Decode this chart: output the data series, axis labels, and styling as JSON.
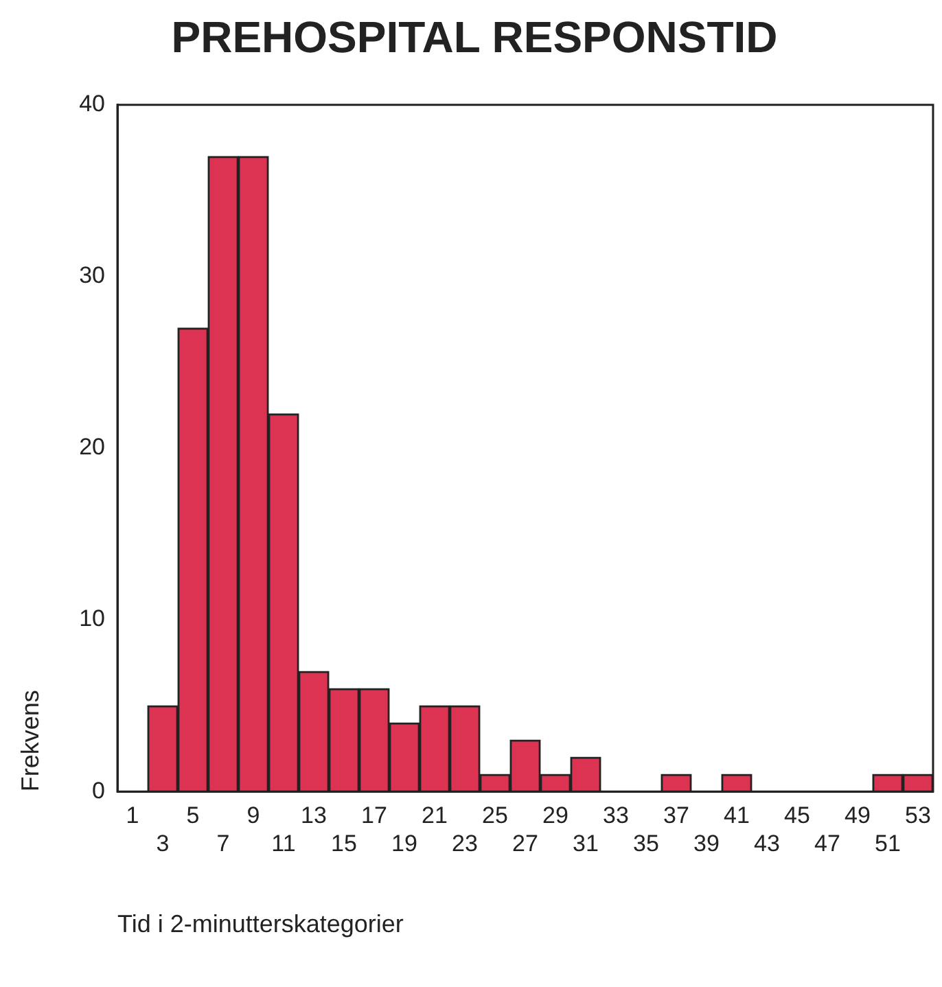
{
  "chart_data": {
    "type": "bar",
    "title": "PREHOSPITAL RESPONSTID",
    "xlabel": "Tid i 2-minutterskategorier",
    "ylabel": "Frekvens",
    "categories": [
      "1",
      "3",
      "5",
      "7",
      "9",
      "11",
      "13",
      "15",
      "17",
      "19",
      "21",
      "23",
      "25",
      "27",
      "29",
      "31",
      "33",
      "35",
      "37",
      "39",
      "41",
      "43",
      "45",
      "47",
      "49",
      "51",
      "53"
    ],
    "values": [
      0,
      5,
      27,
      37,
      37,
      22,
      7,
      6,
      6,
      4,
      5,
      5,
      1,
      3,
      1,
      2,
      0,
      0,
      1,
      0,
      1,
      0,
      0,
      0,
      0,
      1,
      1
    ],
    "color": "#dc3352",
    "ylim": [
      0,
      40
    ],
    "yticks": [
      0,
      10,
      20,
      30,
      40
    ],
    "grid": false,
    "legend": false
  }
}
